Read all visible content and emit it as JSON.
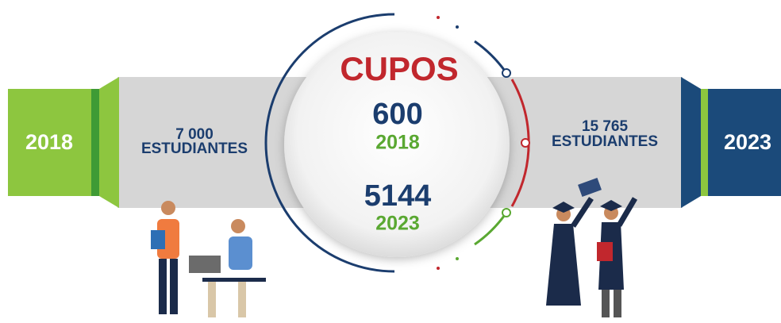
{
  "left": {
    "year": "2018",
    "count": "7 000",
    "label": "ESTUDIANTES"
  },
  "center": {
    "title": "CUPOS",
    "items": [
      {
        "value": "600",
        "year": "2018"
      },
      {
        "value": "5144",
        "year": "2023"
      }
    ]
  },
  "right": {
    "year": "2023",
    "count": "15 765",
    "label": "ESTUDIANTES"
  }
}
